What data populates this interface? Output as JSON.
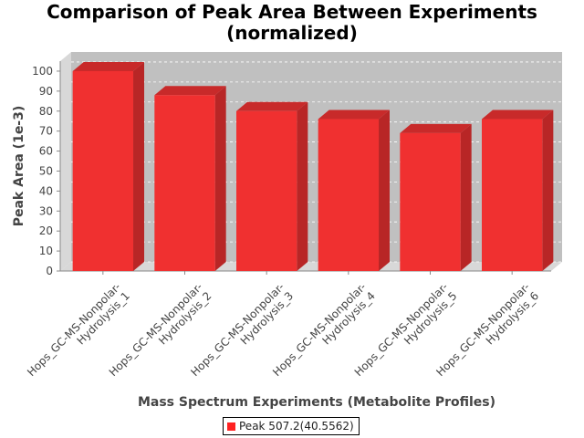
{
  "chart_data": {
    "type": "bar",
    "title": "Comparison of Peak Area Between Experiments",
    "subtitle": "(normalized)",
    "xlabel": "Mass Spectrum Experiments (Metabolite Profiles)",
    "ylabel": "Peak Area (1e-3)",
    "ylim": [
      0,
      105
    ],
    "yticks": [
      0,
      10,
      20,
      30,
      40,
      50,
      60,
      70,
      80,
      90,
      100
    ],
    "grid": true,
    "legend_position": "bottom",
    "bar_style": "3d",
    "categories": [
      [
        "Hops_GC-MS-Nonpolar-",
        "Hydrolysis_1"
      ],
      [
        "Hops_GC-MS-Nonpolar-",
        "Hydrolysis_2"
      ],
      [
        "Hops_GC-MS-Nonpolar-",
        "Hydrolysis_3"
      ],
      [
        "Hops_GC-MS-Nonpolar-",
        "Hydrolysis_4"
      ],
      [
        "Hops_GC-MS-Nonpolar-",
        "Hydrolysis_5"
      ],
      [
        "Hops_GC-MS-Nonpolar-",
        "Hydrolysis_6"
      ]
    ],
    "series": [
      {
        "name": "Peak 507.2(40.5562)",
        "color": "#ff2222",
        "values": [
          100,
          88,
          80,
          76,
          69,
          76
        ]
      }
    ]
  },
  "colors": {
    "plot_background": "#c0c0c0",
    "plot_wall": "#d8d8d8",
    "bar_front": "#f03030",
    "bar_side": "#b82626",
    "bar_top": "#c82a2a"
  }
}
